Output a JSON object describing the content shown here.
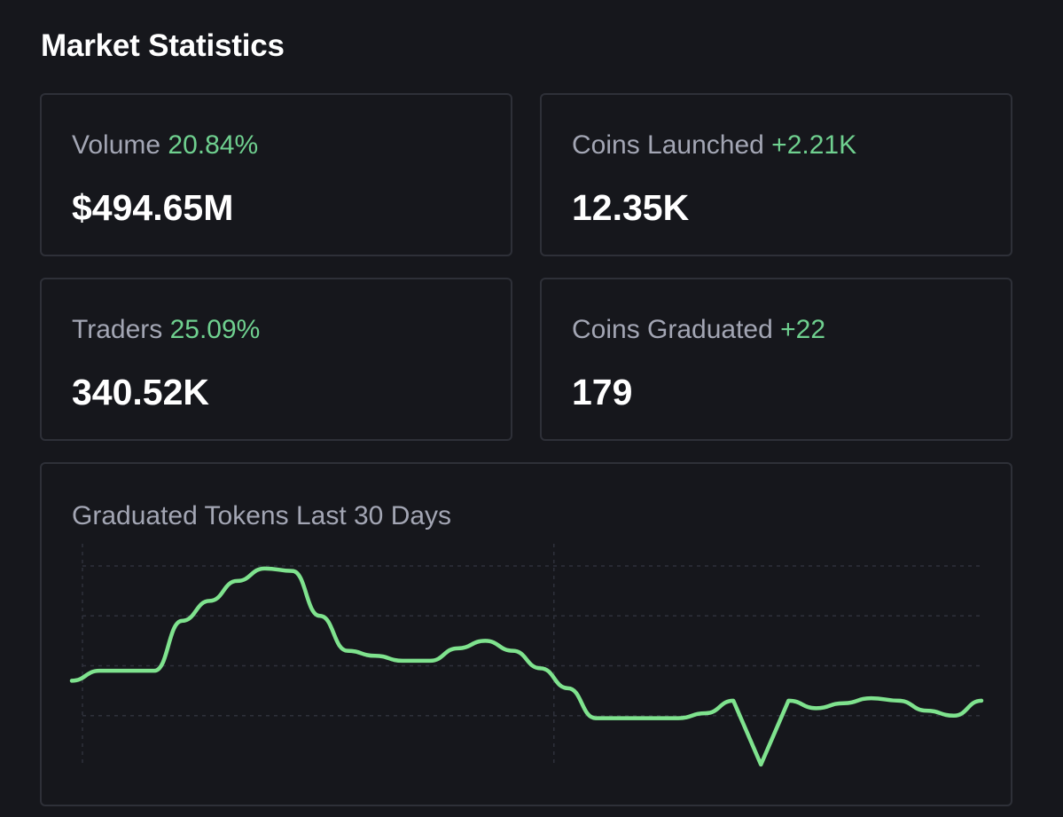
{
  "page": {
    "title": "Market Statistics"
  },
  "stats": [
    {
      "label": "Volume",
      "change": "20.84%",
      "value": "$494.65M"
    },
    {
      "label": "Coins Launched",
      "change": "+2.21K",
      "value": "12.35K"
    },
    {
      "label": "Traders",
      "change": "25.09%",
      "value": "340.52K"
    },
    {
      "label": "Coins Graduated",
      "change": "+22",
      "value": "179"
    }
  ],
  "chart": {
    "title": "Graduated Tokens Last 30 Days"
  },
  "colors": {
    "accent_green": "#6fd08f",
    "line_green": "#7fe38e",
    "background": "#16171c",
    "card_border": "#2e3038",
    "muted_text": "#a3a6b4"
  },
  "chart_data": {
    "type": "line",
    "title": "Graduated Tokens Last 30 Days",
    "xlabel": "",
    "ylabel": "",
    "ylim": [
      0,
      4
    ],
    "grid": true,
    "series": [
      {
        "name": "Graduated Tokens",
        "values": [
          1.7,
          1.9,
          1.9,
          1.9,
          2.9,
          3.3,
          3.7,
          3.95,
          3.9,
          3.0,
          2.3,
          2.2,
          2.1,
          2.1,
          2.35,
          2.5,
          2.3,
          1.95,
          1.55,
          0.95,
          0.95,
          0.95,
          0.95,
          1.05,
          1.3,
          0.02,
          1.3,
          1.15,
          1.25,
          1.35,
          1.3,
          1.1,
          1.0,
          1.3
        ]
      }
    ]
  }
}
